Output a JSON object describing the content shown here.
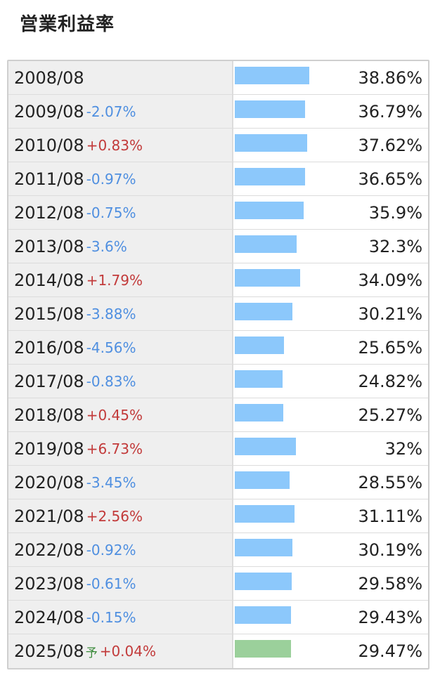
{
  "title": "営業利益率",
  "chart_data": {
    "type": "bar",
    "title": "営業利益率",
    "forecast_label": "予",
    "rows": [
      {
        "year": "2008/08",
        "change": "",
        "value": 38.86,
        "value_label": "38.86%",
        "forecast": false
      },
      {
        "year": "2009/08",
        "change": "-2.07%",
        "value": 36.79,
        "value_label": "36.79%",
        "forecast": false
      },
      {
        "year": "2010/08",
        "change": "+0.83%",
        "value": 37.62,
        "value_label": "37.62%",
        "forecast": false
      },
      {
        "year": "2011/08",
        "change": "-0.97%",
        "value": 36.65,
        "value_label": "36.65%",
        "forecast": false
      },
      {
        "year": "2012/08",
        "change": "-0.75%",
        "value": 35.9,
        "value_label": "35.9%",
        "forecast": false
      },
      {
        "year": "2013/08",
        "change": "-3.6%",
        "value": 32.3,
        "value_label": "32.3%",
        "forecast": false
      },
      {
        "year": "2014/08",
        "change": "+1.79%",
        "value": 34.09,
        "value_label": "34.09%",
        "forecast": false
      },
      {
        "year": "2015/08",
        "change": "-3.88%",
        "value": 30.21,
        "value_label": "30.21%",
        "forecast": false
      },
      {
        "year": "2016/08",
        "change": "-4.56%",
        "value": 25.65,
        "value_label": "25.65%",
        "forecast": false
      },
      {
        "year": "2017/08",
        "change": "-0.83%",
        "value": 24.82,
        "value_label": "24.82%",
        "forecast": false
      },
      {
        "year": "2018/08",
        "change": "+0.45%",
        "value": 25.27,
        "value_label": "25.27%",
        "forecast": false
      },
      {
        "year": "2019/08",
        "change": "+6.73%",
        "value": 32,
        "value_label": "32%",
        "forecast": false
      },
      {
        "year": "2020/08",
        "change": "-3.45%",
        "value": 28.55,
        "value_label": "28.55%",
        "forecast": false
      },
      {
        "year": "2021/08",
        "change": "+2.56%",
        "value": 31.11,
        "value_label": "31.11%",
        "forecast": false
      },
      {
        "year": "2022/08",
        "change": "-0.92%",
        "value": 30.19,
        "value_label": "30.19%",
        "forecast": false
      },
      {
        "year": "2023/08",
        "change": "-0.61%",
        "value": 29.58,
        "value_label": "29.58%",
        "forecast": false
      },
      {
        "year": "2024/08",
        "change": "-0.15%",
        "value": 29.43,
        "value_label": "29.43%",
        "forecast": false
      },
      {
        "year": "2025/08",
        "change": "+0.04%",
        "value": 29.47,
        "value_label": "29.47%",
        "forecast": true
      }
    ],
    "max_value": 38.86,
    "colors": {
      "bar": "#8cc8fb",
      "forecast_bar": "#9bd09b",
      "negative_change": "#4f8fe0",
      "positive_change": "#c23a3a"
    }
  }
}
